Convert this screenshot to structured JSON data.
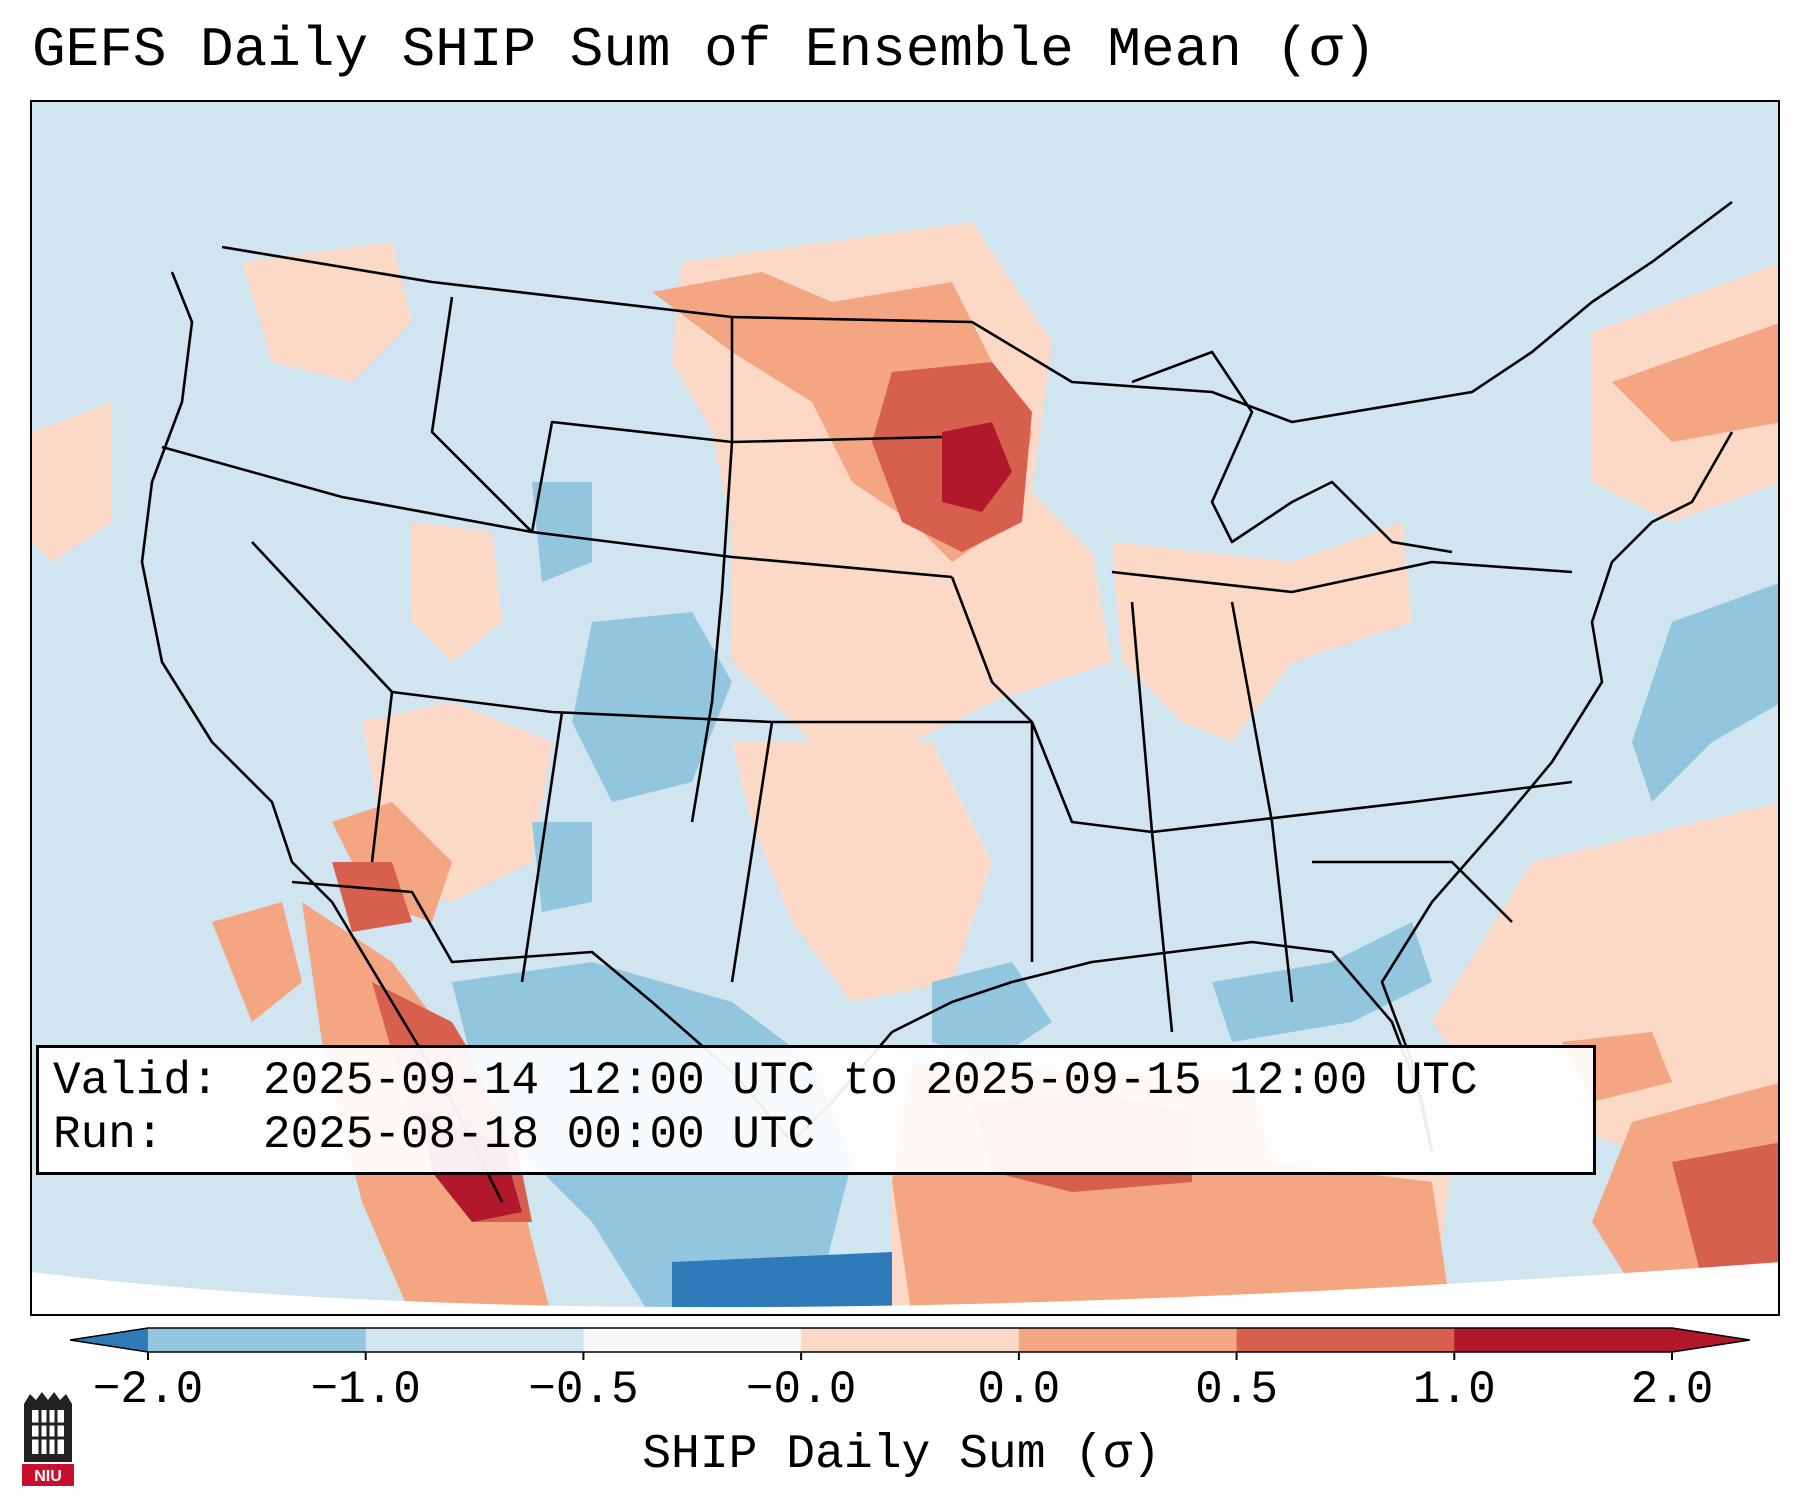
{
  "title": "GEFS Daily SHIP Sum of Ensemble Mean (σ)",
  "info": {
    "valid_label": "Valid:",
    "valid_value": "2025-09-14 12:00 UTC to 2025-09-15 12:00 UTC",
    "run_label": "Run:",
    "run_value": "2025-08-18 00:00 UTC"
  },
  "colorbar": {
    "label": "SHIP Daily Sum (σ)",
    "ticks": [
      "−2.0",
      "−1.0",
      "−0.5",
      "−0.0",
      "0.0",
      "0.5",
      "1.0",
      "2.0"
    ],
    "colors": [
      "#2f7ab8",
      "#92c5de",
      "#d1e5f0",
      "#f7f7f7",
      "#fbd9c6",
      "#f4a582",
      "#d6604d",
      "#b2182b"
    ],
    "extend": "both"
  },
  "logo": {
    "text": "NIU"
  },
  "map": {
    "region": "Continental United States",
    "projection": "Lambert Conformal",
    "field": "SHIP daily sum anomaly"
  }
}
